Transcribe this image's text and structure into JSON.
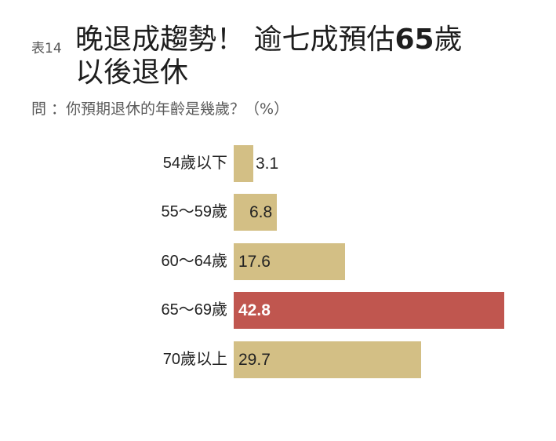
{
  "header": {
    "table_no": "表14",
    "title_part1": "晚退成趨勢！ 逾七成預估",
    "title_bold": "65",
    "title_part2": "歲",
    "title_line2": "以後退休",
    "question": "問 ：你預期退休的年齡是幾歲？（%）"
  },
  "colors": {
    "bar": "#d3bf85",
    "highlight": "#c0564f",
    "text": "#222222"
  },
  "chart_data": {
    "type": "bar",
    "orientation": "horizontal",
    "title": "晚退成趨勢！逾七成預估65歲以後退休",
    "subtitle": "問：你預期退休的年齡是幾歲？（%）",
    "xlabel": "",
    "ylabel": "",
    "unit": "%",
    "grid": false,
    "legend": null,
    "categories": [
      "54歲以下",
      "55～59歲",
      "60～64歲",
      "65～69歲",
      "70歲以上"
    ],
    "values": [
      3.1,
      6.8,
      17.6,
      42.8,
      29.7
    ],
    "labels": [
      "3.1",
      "6.8",
      "17.6",
      "42.8",
      "29.7"
    ],
    "highlight_index": 3
  }
}
